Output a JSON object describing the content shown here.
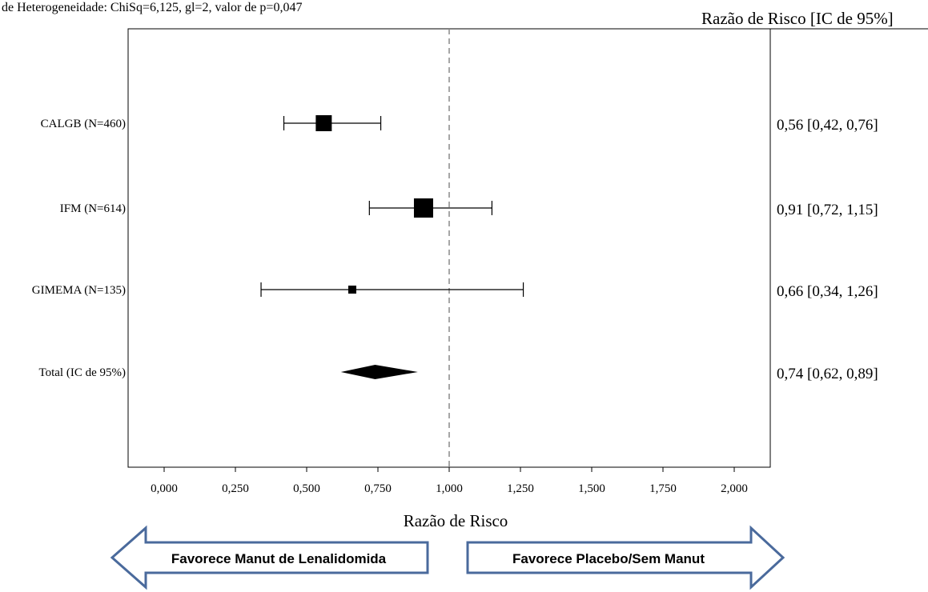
{
  "chart_data": {
    "type": "forest",
    "heterogeneity_text": "de Heterogeneidade: ChiSq=6,125, gl=2, valor de p=0,047",
    "column_header": "Razão de Risco [IC de 95%]",
    "xlabel": "Razão de Risco",
    "xlim": [
      -0.15,
      2.25
    ],
    "reference_line": 1.0,
    "x_ticks": [
      0,
      0.25,
      0.5,
      0.75,
      1.0,
      1.25,
      1.5,
      1.75,
      2.0
    ],
    "x_tick_labels": [
      "0,000",
      "0,250",
      "0,500",
      "0,750",
      "1,000",
      "1,250",
      "1,500",
      "1,750",
      "2,000"
    ],
    "studies": [
      {
        "label": "CALGB (N=460)",
        "hr": 0.56,
        "lower": 0.42,
        "upper": 0.76,
        "summary": "0,56 [0,42, 0,76]",
        "marker": "square"
      },
      {
        "label": "IFM (N=614)",
        "hr": 0.91,
        "lower": 0.72,
        "upper": 1.15,
        "summary": "0,91 [0,72, 1,15]",
        "marker": "square"
      },
      {
        "label": "GIMEMA (N=135)",
        "hr": 0.66,
        "lower": 0.34,
        "upper": 1.26,
        "summary": "0,66 [0,34, 1,26]",
        "marker": "square"
      },
      {
        "label": "Total (IC de 95%)",
        "hr": 0.74,
        "lower": 0.62,
        "upper": 0.89,
        "summary": "0,74 [0,62, 0,89]",
        "marker": "diamond"
      }
    ],
    "favor_left": "Favorece Manut de Lenalidomida",
    "favor_right": "Favorece Placebo/Sem Manut",
    "colors": {
      "marker": "#000000",
      "arrow_stroke": "#4a6a9c",
      "reference_line": "#888888"
    }
  }
}
